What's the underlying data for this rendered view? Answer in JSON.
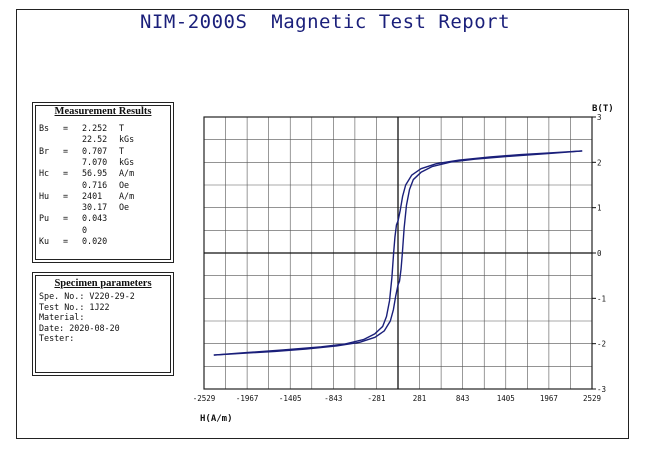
{
  "report": {
    "title": "NIM-2000S  Magnetic Test Report"
  },
  "measurement_results": {
    "heading": "Measurement Results",
    "rows": [
      {
        "name": "Bs",
        "eq": "=",
        "value": "2.252",
        "unit": "T"
      },
      {
        "name": "",
        "eq": "",
        "value": "22.52",
        "unit": "kGs"
      },
      {
        "name": "Br",
        "eq": "=",
        "value": "0.707",
        "unit": "T"
      },
      {
        "name": "",
        "eq": "",
        "value": "7.070",
        "unit": "kGs"
      },
      {
        "name": "Hc",
        "eq": "=",
        "value": "56.95",
        "unit": "A/m"
      },
      {
        "name": "",
        "eq": "",
        "value": "0.716",
        "unit": "Oe"
      },
      {
        "name": "Hu",
        "eq": "=",
        "value": "2401",
        "unit": "A/m"
      },
      {
        "name": "",
        "eq": "",
        "value": "30.17",
        "unit": "Oe"
      },
      {
        "name": "Pu",
        "eq": "=",
        "value": "0.043",
        "unit": ""
      },
      {
        "name": "",
        "eq": "",
        "value": "0",
        "unit": ""
      },
      {
        "name": "Ku",
        "eq": "=",
        "value": "0.020",
        "unit": ""
      }
    ]
  },
  "specimen_parameters": {
    "heading": "Specimen parameters",
    "lines": [
      "Spe. No.: V220-29-2",
      "Test No.: 1J22",
      "Material:",
      "Date: 2020-08-20",
      "Tester:"
    ]
  },
  "chart_data": {
    "type": "line",
    "xlabel": "H(A/m)",
    "ylabel": "B(T)",
    "xlim": [
      -2529,
      2529
    ],
    "ylim": [
      -3,
      3
    ],
    "x_ticks": [
      -2529,
      -1967,
      -1405,
      -843,
      -281,
      281,
      843,
      1405,
      1967,
      2529
    ],
    "y_ticks": [
      -3,
      -2,
      -1,
      0,
      1,
      2,
      3
    ],
    "grid": true,
    "line_color": "#1a1f7a",
    "series": [
      {
        "values": [
          [
            -2401,
            -2.252
          ],
          [
            -2000,
            -2.2
          ],
          [
            -1500,
            -2.14
          ],
          [
            -1000,
            -2.07
          ],
          [
            -700,
            -2.01
          ],
          [
            -450,
            -1.91
          ],
          [
            -300,
            -1.78
          ],
          [
            -200,
            -1.62
          ],
          [
            -150,
            -1.4
          ],
          [
            -110,
            -1.05
          ],
          [
            -80,
            -0.55
          ],
          [
            -57,
            0.0
          ],
          [
            -40,
            0.35
          ],
          [
            -20,
            0.62
          ],
          [
            0,
            0.707
          ],
          [
            30,
            0.95
          ],
          [
            60,
            1.25
          ],
          [
            100,
            1.5
          ],
          [
            180,
            1.72
          ],
          [
            300,
            1.86
          ],
          [
            500,
            1.97
          ],
          [
            800,
            2.05
          ],
          [
            1200,
            2.12
          ],
          [
            1600,
            2.17
          ],
          [
            2000,
            2.21
          ],
          [
            2401,
            2.252
          ]
        ]
      },
      {
        "values": [
          [
            2401,
            2.252
          ],
          [
            2000,
            2.2
          ],
          [
            1500,
            2.14
          ],
          [
            1000,
            2.07
          ],
          [
            700,
            2.01
          ],
          [
            450,
            1.91
          ],
          [
            300,
            1.78
          ],
          [
            200,
            1.62
          ],
          [
            150,
            1.4
          ],
          [
            110,
            1.05
          ],
          [
            80,
            0.55
          ],
          [
            57,
            0.0
          ],
          [
            40,
            -0.35
          ],
          [
            20,
            -0.62
          ],
          [
            0,
            -0.707
          ],
          [
            -30,
            -0.95
          ],
          [
            -60,
            -1.25
          ],
          [
            -100,
            -1.5
          ],
          [
            -180,
            -1.72
          ],
          [
            -300,
            -1.86
          ],
          [
            -500,
            -1.97
          ],
          [
            -800,
            -2.05
          ],
          [
            -1200,
            -2.12
          ],
          [
            -1600,
            -2.17
          ],
          [
            -2000,
            -2.21
          ],
          [
            -2401,
            -2.252
          ]
        ]
      }
    ]
  }
}
